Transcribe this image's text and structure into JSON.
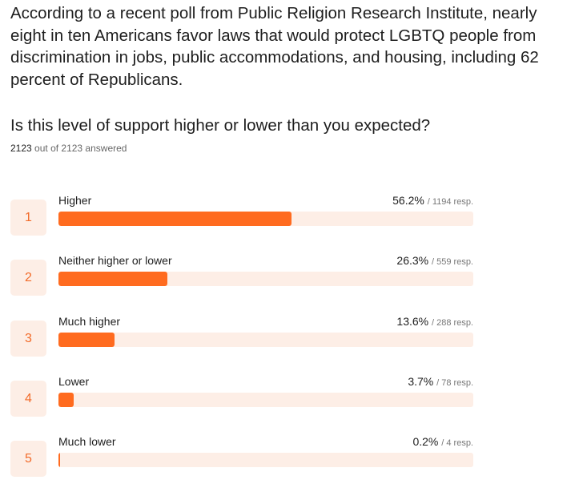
{
  "intro": "According to a recent poll from Public Religion Research Institute, nearly eight in ten Americans favor laws that would protect LGBTQ people from discrimination in jobs, public accommodations, and housing, including 62 percent of Republicans.",
  "question": "Is this level of support higher or lower than you expected?",
  "answered": {
    "count": "2123",
    "text": "out of 2123 answered"
  },
  "colors": {
    "accent": "#ff6b1f",
    "track": "#fdeee6",
    "rank_text": "#f26b2a"
  },
  "chart_data": {
    "type": "bar",
    "orientation": "horizontal",
    "categories": [
      "Higher",
      "Neither higher or lower",
      "Much higher",
      "Lower",
      "Much lower"
    ],
    "values": [
      56.2,
      26.3,
      13.6,
      3.7,
      0.2
    ],
    "value_unit": "percent",
    "xlim": [
      0,
      100
    ],
    "rows": [
      {
        "rank": "1",
        "label": "Higher",
        "percent": 56.2,
        "percent_label": "56.2%",
        "resp": "/ 1194 resp."
      },
      {
        "rank": "2",
        "label": "Neither higher or lower",
        "percent": 26.3,
        "percent_label": "26.3%",
        "resp": "/ 559 resp."
      },
      {
        "rank": "3",
        "label": "Much higher",
        "percent": 13.6,
        "percent_label": "13.6%",
        "resp": "/ 288 resp."
      },
      {
        "rank": "4",
        "label": "Lower",
        "percent": 3.7,
        "percent_label": "3.7%",
        "resp": "/ 78 resp."
      },
      {
        "rank": "5",
        "label": "Much lower",
        "percent": 0.2,
        "percent_label": "0.2%",
        "resp": "/ 4 resp."
      }
    ]
  }
}
